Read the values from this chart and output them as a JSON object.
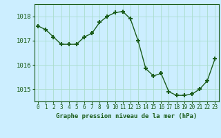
{
  "x": [
    0,
    1,
    2,
    3,
    4,
    5,
    6,
    7,
    8,
    9,
    10,
    11,
    12,
    13,
    14,
    15,
    16,
    17,
    18,
    19,
    20,
    21,
    22,
    23
  ],
  "y": [
    1017.6,
    1017.45,
    1017.15,
    1016.85,
    1016.85,
    1016.85,
    1017.15,
    1017.3,
    1017.75,
    1018.0,
    1018.15,
    1018.2,
    1017.9,
    1017.0,
    1015.85,
    1015.55,
    1015.65,
    1014.9,
    1014.75,
    1014.75,
    1014.8,
    1015.0,
    1015.35,
    1016.25
  ],
  "line_color": "#1a5c1a",
  "marker": "+",
  "marker_color": "#1a5c1a",
  "bg_color": "#cceeff",
  "grid_color": "#aaddcc",
  "axis_color": "#1a5c1a",
  "tick_label_color": "#1a5c1a",
  "xlabel": "Graphe pression niveau de la mer (hPa)",
  "xlabel_color": "#1a5c1a",
  "ylim": [
    1014.5,
    1018.5
  ],
  "yticks": [
    1015,
    1016,
    1017,
    1018
  ],
  "xticks": [
    0,
    1,
    2,
    3,
    4,
    5,
    6,
    7,
    8,
    9,
    10,
    11,
    12,
    13,
    14,
    15,
    16,
    17,
    18,
    19,
    20,
    21,
    22,
    23
  ],
  "xlim": [
    -0.5,
    23.5
  ]
}
